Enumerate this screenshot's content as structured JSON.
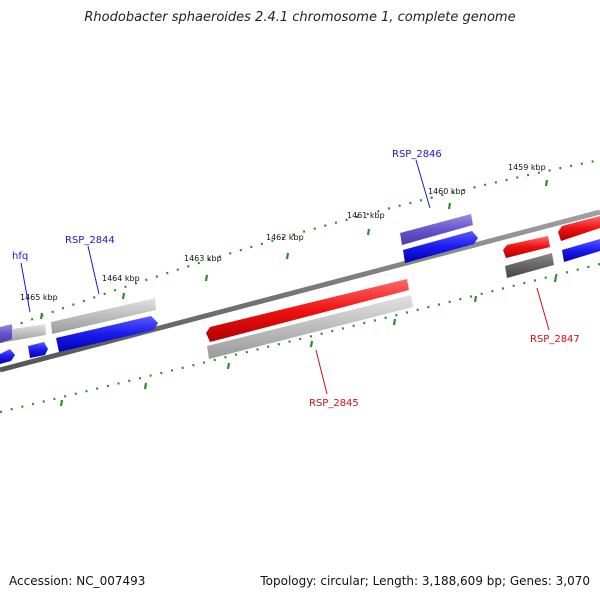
{
  "title": "Rhodobacter sphaeroides 2.4.1 chromosome 1, complete genome",
  "accession_text": "Accession: NC_007493",
  "stats_text": "Topology: circular; Length: 3,188,609 bp; Genes: 3,070",
  "kbp_labels": [
    "1459 kbp",
    "1460 kbp",
    "1461 kbp",
    "1462 kbp",
    "1463 kbp",
    "1464 kbp",
    "1465 kbp"
  ],
  "gene_labels": [
    {
      "name": "hfq",
      "color": "#1a1acc"
    },
    {
      "name": "RSP_2844",
      "color": "#1a1acc"
    },
    {
      "name": "RSP_2846",
      "color": "#1a1acc"
    },
    {
      "name": "RSP_2845",
      "color": "#cc1111"
    },
    {
      "name": "RSP_2847",
      "color": "#cc1111"
    }
  ],
  "colors": {
    "forward_gene": "#1a1aee",
    "forward_gene_highlight": "#6655cc",
    "reverse_gene": "#ee1111",
    "cds_gray": "#bdbdbd",
    "cds_dark": "#666666",
    "backbone": "#777777",
    "tick": "#2e8b2e"
  }
}
